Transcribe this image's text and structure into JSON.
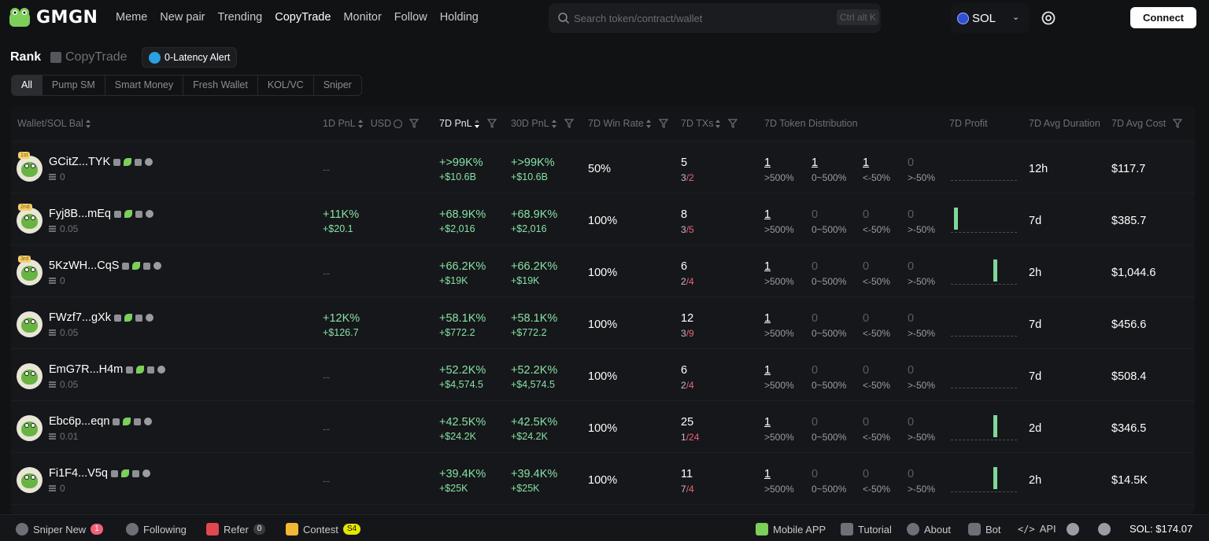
{
  "header": {
    "logo_text": "GMGN",
    "nav": [
      "Meme",
      "New pair",
      "Trending",
      "CopyTrade",
      "Monitor",
      "Follow",
      "Holding"
    ],
    "nav_active": "CopyTrade",
    "search_placeholder": "Search token/contract/wallet",
    "search_shortcut": "Ctrl alt K",
    "chain": "SOL",
    "connect_label": "Connect"
  },
  "subheader": {
    "rank": "Rank",
    "copytrade": "CopyTrade",
    "alert": "0-Latency Alert",
    "filters": [
      "All",
      "Pump SM",
      "Smart Money",
      "Fresh Wallet",
      "KOL/VC",
      "Sniper"
    ],
    "filter_active": "All"
  },
  "columns": {
    "wallet": "Wallet/SOL Bal",
    "pnl1d": "1D PnL",
    "usd": "USD",
    "pnl7d": "7D PnL",
    "pnl30d": "30D PnL",
    "winrate": "7D Win Rate",
    "txs": "7D TXs",
    "dist": "7D Token Distribution",
    "profit": "7D Profit",
    "duration": "7D Avg Duration",
    "cost": "7D Avg Cost"
  },
  "rows": [
    {
      "medal": "1st",
      "name": "GCitZ...TYK",
      "bal": "0",
      "d1": "--",
      "d1u": "",
      "d7": "+>99K%",
      "d7u": "+$10.6B",
      "d30": "+>99K%",
      "d30u": "+$10.6B",
      "wr": "50%",
      "tx": "5",
      "txw": "3",
      "txl": "2",
      "dist": [
        "1",
        "1",
        "1",
        "0"
      ],
      "profit_bar": -1,
      "dur": "12h",
      "cost": "$117.7"
    },
    {
      "medal": "2nd",
      "name": "Fyj8B...mEq",
      "bal": "0.05",
      "d1": "+11K%",
      "d1u": "+$20.1",
      "d7": "+68.9K%",
      "d7u": "+$2,016",
      "d30": "+68.9K%",
      "d30u": "+$2,016",
      "wr": "100%",
      "tx": "8",
      "txw": "3",
      "txl": "5",
      "dist": [
        "1",
        "0",
        "0",
        "0"
      ],
      "profit_bar": 0,
      "dur": "7d",
      "cost": "$385.7"
    },
    {
      "medal": "3rd",
      "name": "5KzWH...CqS",
      "bal": "0",
      "d1": "--",
      "d1u": "",
      "d7": "+66.2K%",
      "d7u": "+$19K",
      "d30": "+66.2K%",
      "d30u": "+$19K",
      "wr": "100%",
      "tx": "6",
      "txw": "2",
      "txl": "4",
      "dist": [
        "1",
        "0",
        "0",
        "0"
      ],
      "profit_bar": 5,
      "dur": "2h",
      "cost": "$1,044.6"
    },
    {
      "medal": "",
      "name": "FWzf7...gXk",
      "bal": "0.05",
      "d1": "+12K%",
      "d1u": "+$126.7",
      "d7": "+58.1K%",
      "d7u": "+$772.2",
      "d30": "+58.1K%",
      "d30u": "+$772.2",
      "wr": "100%",
      "tx": "12",
      "txw": "3",
      "txl": "9",
      "dist": [
        "1",
        "0",
        "0",
        "0"
      ],
      "profit_bar": -1,
      "dur": "7d",
      "cost": "$456.6"
    },
    {
      "medal": "",
      "name": "EmG7R...H4m",
      "bal": "0.05",
      "d1": "--",
      "d1u": "",
      "d7": "+52.2K%",
      "d7u": "+$4,574.5",
      "d30": "+52.2K%",
      "d30u": "+$4,574.5",
      "wr": "100%",
      "tx": "6",
      "txw": "2",
      "txl": "4",
      "dist": [
        "1",
        "0",
        "0",
        "0"
      ],
      "profit_bar": -1,
      "dur": "7d",
      "cost": "$508.4"
    },
    {
      "medal": "",
      "name": "Ebc6p...eqn",
      "bal": "0.01",
      "d1": "--",
      "d1u": "",
      "d7": "+42.5K%",
      "d7u": "+$24.2K",
      "d30": "+42.5K%",
      "d30u": "+$24.2K",
      "wr": "100%",
      "tx": "25",
      "txw": "1",
      "txl": "24",
      "dist": [
        "1",
        "0",
        "0",
        "0"
      ],
      "profit_bar": 5,
      "dur": "2d",
      "cost": "$346.5"
    },
    {
      "medal": "",
      "name": "Fi1F4...V5q",
      "bal": "0",
      "d1": "--",
      "d1u": "",
      "d7": "+39.4K%",
      "d7u": "+$25K",
      "d30": "+39.4K%",
      "d30u": "+$25K",
      "wr": "100%",
      "tx": "11",
      "txw": "7",
      "txl": "4",
      "dist": [
        "1",
        "0",
        "0",
        "0"
      ],
      "profit_bar": 5,
      "dur": "2h",
      "cost": "$14.5K"
    }
  ],
  "dist_labels": [
    ">500%",
    "0~500%",
    "<-50%",
    ">-50%"
  ],
  "footer": {
    "sniper": "Sniper New",
    "sniper_badge": "1",
    "following": "Following",
    "refer": "Refer",
    "refer_badge": "0",
    "contest": "Contest",
    "contest_badge": "S4",
    "mobile": "Mobile APP",
    "tutorial": "Tutorial",
    "about": "About",
    "bot": "Bot",
    "api": "API",
    "sol_price": "SOL: $174.07"
  },
  "colors": {
    "accent_green": "#86e0a4",
    "loss_red": "#f0617a",
    "bg": "#111214"
  }
}
